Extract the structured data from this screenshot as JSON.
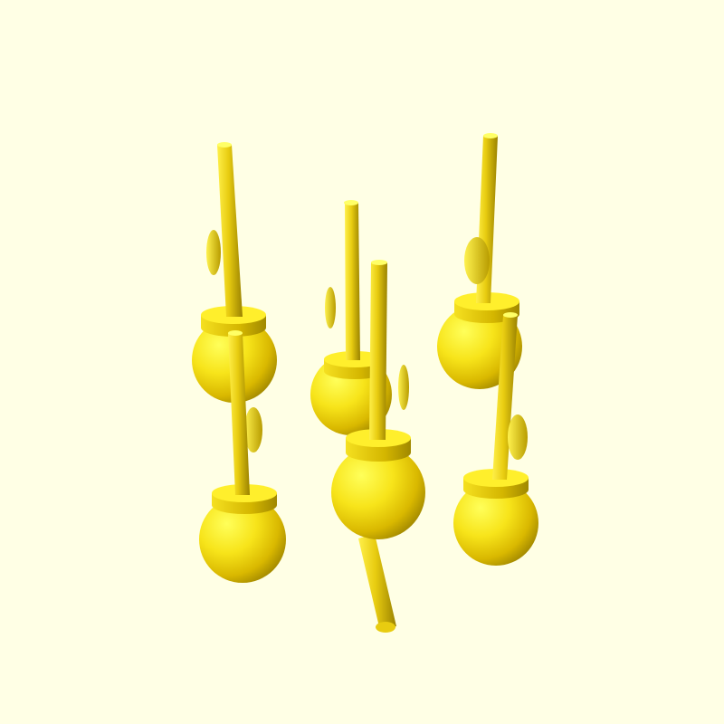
{
  "scene": {
    "background": "#ffffe5",
    "object_colors": {
      "light": "#ffff4a",
      "mid": "#f2dc14",
      "base": "#e8c800",
      "dark": "#9a8400",
      "shadow": "#6e5c00"
    },
    "object_count": 6,
    "object_kind": "pin-with-ball-base",
    "extra_rod": true
  }
}
